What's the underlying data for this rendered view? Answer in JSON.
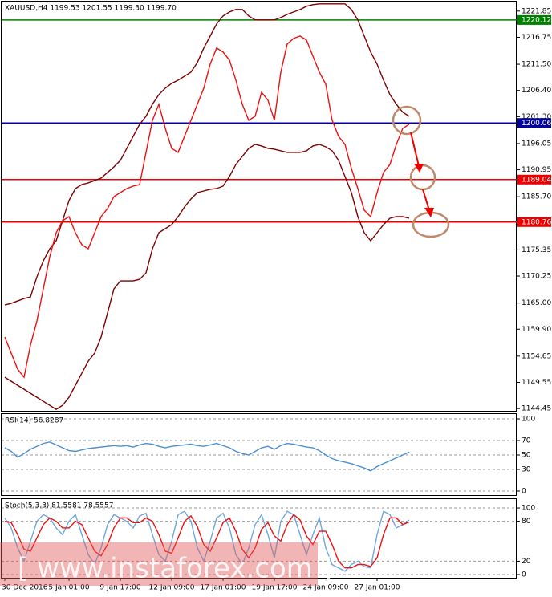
{
  "watermark": "[ www.instaforex.com ]",
  "chart_data": [
    {
      "type": "line",
      "title": "XAUUSD,H4  1199.53 1201.55 1199.30 1199.70",
      "series": [
        {
          "color": "#800000",
          "values": [
            1164.62,
            1164.93,
            1165.4,
            1165.87,
            1166.18,
            1170.09,
            1173.22,
            1175.56,
            1177.13,
            1181.04,
            1184.95,
            1187.29,
            1188.07,
            1188.39,
            1188.86,
            1189.32,
            1190.42,
            1191.51,
            1192.77,
            1195.11,
            1197.46,
            1199.8,
            1201.37,
            1203.71,
            1205.59,
            1206.84,
            1207.78,
            1208.4,
            1209.18,
            1209.97,
            1211.84,
            1214.66,
            1217.0,
            1219.35,
            1220.91,
            1221.69,
            1222.16,
            1222.16,
            1220.91,
            1220.13,
            1220.13,
            1220.13,
            1220.13,
            1220.6,
            1221.22,
            1221.69,
            1222.16,
            1222.79,
            1223.1,
            1223.26,
            1223.26,
            1223.26,
            1223.26,
            1223.26,
            1222.16,
            1220.13,
            1217.0,
            1213.88,
            1211.53,
            1208.4,
            1205.59,
            1203.71,
            1202.15,
            1201.37
          ]
        },
        {
          "color": "#800000",
          "values": [
            1150.54,
            1149.76,
            1148.98,
            1148.2,
            1147.42,
            1146.64,
            1145.85,
            1145.07,
            1144.29,
            1145.07,
            1146.64,
            1148.98,
            1151.33,
            1153.67,
            1155.24,
            1158.36,
            1163.05,
            1167.75,
            1169.31,
            1169.31,
            1169.31,
            1169.62,
            1170.87,
            1175.56,
            1178.69,
            1179.47,
            1180.26,
            1181.82,
            1183.7,
            1185.26,
            1186.51,
            1186.82,
            1187.14,
            1187.29,
            1187.76,
            1189.64,
            1191.98,
            1193.55,
            1195.11,
            1195.89,
            1195.58,
            1195.11,
            1194.95,
            1194.64,
            1194.33,
            1194.33,
            1194.33,
            1194.64,
            1195.58,
            1195.89,
            1195.42,
            1194.64,
            1192.77,
            1189.64,
            1186.51,
            1181.82,
            1178.69,
            1177.13,
            1178.69,
            1180.26,
            1181.51,
            1181.82,
            1181.82,
            1181.51
          ]
        },
        {
          "color": "#ee1111",
          "values": [
            1158.36,
            1155.24,
            1152.11,
            1150.54,
            1156.8,
            1161.49,
            1167.74,
            1174.0,
            1178.69,
            1181.04,
            1181.82,
            1178.69,
            1176.35,
            1175.56,
            1178.69,
            1181.82,
            1183.38,
            1185.73,
            1186.51,
            1187.29,
            1187.76,
            1188.07,
            1194.33,
            1200.58,
            1203.71,
            1199.02,
            1195.11,
            1194.33,
            1197.46,
            1200.58,
            1203.71,
            1206.84,
            1211.53,
            1214.66,
            1213.88,
            1212.31,
            1208.4,
            1203.71,
            1200.58,
            1201.37,
            1206.06,
            1204.49,
            1200.58,
            1209.97,
            1215.44,
            1216.53,
            1217.0,
            1216.22,
            1213.09,
            1209.97,
            1207.62,
            1200.58,
            1197.46,
            1195.89,
            1191.2,
            1187.29,
            1183.07,
            1181.82,
            1186.51,
            1190.42,
            1191.98,
            1195.89,
            1199.02,
            1199.8
          ]
        }
      ],
      "levels": [
        {
          "value": 1220.12,
          "color": "#008000"
        },
        {
          "value": 1200.06,
          "color": "#0000a0"
        },
        {
          "value": 1189.04,
          "color": "#ee0000"
        },
        {
          "value": 1180.76,
          "color": "#ee0000"
        }
      ],
      "ylim": [
        1144,
        1223.7
      ],
      "yticks": [
        1144.45,
        1149.55,
        1154.65,
        {
          "value": 1159.9,
          "label": "1159.90"
        },
        {
          "value": 1165,
          "label": "1165.00"
        },
        1170.25,
        1175.35,
        {
          "value": 1180.6,
          "label": "1180.60"
        },
        {
          "value": 1185.7,
          "label": "1185.70"
        },
        1190.95,
        1196.05,
        {
          "value": 1201.3,
          "label": "1201.30"
        },
        {
          "value": 1206.4,
          "label": "1206.40"
        },
        {
          "value": 1211.5,
          "label": "1211.50"
        },
        1216.75,
        1221.85
      ],
      "grid": false
    },
    {
      "type": "line",
      "title": "RSI(14) 56.8287",
      "series": [
        {
          "color": "#4a90d0",
          "values": [
            60,
            55,
            47,
            52,
            58,
            62,
            66,
            68,
            64,
            60,
            56,
            55,
            57,
            59,
            60,
            61,
            62,
            63,
            62,
            63,
            61,
            64,
            66,
            65,
            62,
            60,
            62,
            63,
            64,
            65,
            63,
            62,
            64,
            66,
            63,
            60,
            55,
            52,
            50,
            55,
            60,
            62,
            58,
            63,
            66,
            65,
            63,
            61,
            60,
            56,
            50,
            45,
            42,
            40,
            38,
            35,
            32,
            28,
            34,
            38,
            42,
            46,
            50,
            54
          ]
        }
      ],
      "ylim": [
        -6.7,
        106.7
      ],
      "yticks": [
        0,
        30,
        50,
        70,
        100
      ],
      "grid": true
    },
    {
      "type": "line",
      "title": "Stoch(5,3,3) 81.5581 78.5557",
      "categories": [
        "30 Dec 2016",
        null,
        null,
        null,
        null,
        null,
        null,
        null,
        null,
        null,
        "5 Jan 01:00",
        null,
        null,
        null,
        null,
        null,
        null,
        null,
        "9 Jan 17:00",
        null,
        null,
        null,
        null,
        null,
        null,
        null,
        "12 Jan 09:00",
        null,
        null,
        null,
        null,
        null,
        null,
        null,
        "17 Jan 01:00",
        null,
        null,
        null,
        null,
        null,
        null,
        null,
        "19 Jan 17:00",
        null,
        null,
        null,
        null,
        null,
        null,
        null,
        "24 Jan 09:00",
        null,
        null,
        null,
        null,
        null,
        null,
        null,
        "27 Jan 01:00",
        null,
        null,
        null,
        null,
        null
      ],
      "series": [
        {
          "color": "#6fa8dc",
          "values": [
            85,
            70,
            40,
            20,
            50,
            80,
            90,
            85,
            70,
            60,
            80,
            90,
            60,
            30,
            15,
            40,
            75,
            90,
            85,
            80,
            70,
            88,
            92,
            60,
            30,
            20,
            50,
            90,
            95,
            80,
            40,
            20,
            50,
            85,
            92,
            70,
            30,
            15,
            40,
            75,
            90,
            60,
            25,
            80,
            95,
            90,
            60,
            30,
            60,
            85,
            40,
            15,
            10,
            5,
            15,
            20,
            12,
            10,
            60,
            95,
            90,
            70,
            75,
            82
          ]
        },
        {
          "color": "#ee1111",
          "values": [
            80,
            78,
            60,
            38,
            35,
            55,
            75,
            85,
            80,
            70,
            70,
            80,
            75,
            55,
            35,
            28,
            45,
            70,
            85,
            85,
            78,
            78,
            85,
            80,
            60,
            35,
            32,
            55,
            80,
            88,
            72,
            45,
            35,
            55,
            78,
            85,
            65,
            38,
            25,
            40,
            68,
            78,
            58,
            50,
            75,
            90,
            82,
            58,
            45,
            65,
            65,
            45,
            20,
            10,
            10,
            15,
            15,
            12,
            25,
            60,
            85,
            85,
            75,
            79
          ]
        }
      ],
      "ylim": [
        -4.8,
        113.3
      ],
      "yticks": [
        0,
        20,
        80,
        100
      ],
      "grid": true
    }
  ]
}
